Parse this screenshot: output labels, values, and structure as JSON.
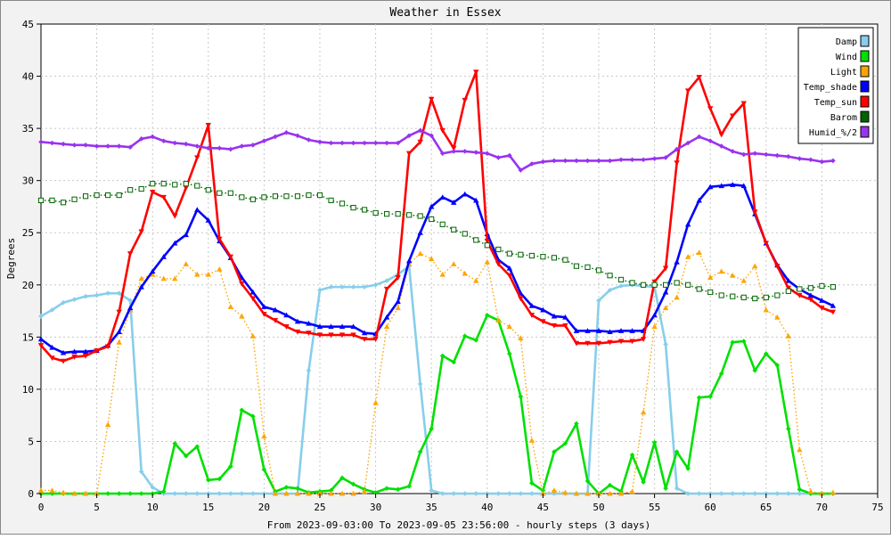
{
  "chart_data": {
    "type": "line",
    "title": "Weather in Essex",
    "xlabel": "From 2023-09-03:00 To 2023-09-05 23:56:00 - hourly steps (3 days)",
    "ylabel": "Degrees",
    "xlim": [
      0,
      75
    ],
    "ylim": [
      0,
      45
    ],
    "xticks": [
      0,
      5,
      10,
      15,
      20,
      25,
      30,
      35,
      40,
      45,
      50,
      55,
      60,
      65,
      70,
      75
    ],
    "yticks": [
      0,
      5,
      10,
      15,
      20,
      25,
      30,
      35,
      40,
      45
    ],
    "grid": true,
    "legend_position": "top-right",
    "x": [
      0,
      1,
      2,
      3,
      4,
      5,
      6,
      7,
      8,
      9,
      10,
      11,
      12,
      13,
      14,
      15,
      16,
      17,
      18,
      19,
      20,
      21,
      22,
      23,
      24,
      25,
      26,
      27,
      28,
      29,
      30,
      31,
      32,
      33,
      34,
      35,
      36,
      37,
      38,
      39,
      40,
      41,
      42,
      43,
      44,
      45,
      46,
      47,
      48,
      49,
      50,
      51,
      52,
      53,
      54,
      55,
      56,
      57,
      58,
      59,
      60,
      61,
      62,
      63,
      64,
      65,
      66,
      67,
      68,
      69,
      70,
      71
    ],
    "series": [
      {
        "name": "Damp",
        "color": "#87ceeb",
        "style": "solid",
        "marker": "diamond",
        "values": [
          17,
          17.6,
          18.3,
          18.6,
          18.9,
          19.0,
          19.2,
          19.2,
          18.5,
          2.1,
          0.6,
          0,
          0,
          0,
          0,
          0,
          0,
          0,
          0,
          0,
          0,
          0,
          0,
          0,
          11.8,
          19.5,
          19.8,
          19.8,
          19.8,
          19.8,
          20.0,
          20.4,
          21.0,
          21.8,
          10.5,
          0.3,
          0,
          0,
          0,
          0,
          0,
          0,
          0,
          0,
          0,
          0,
          0,
          0,
          0,
          0,
          18.5,
          19.5,
          19.9,
          20.0,
          19.9,
          19.8,
          14.3,
          0.5,
          0,
          0,
          0,
          0,
          0,
          0,
          0,
          0,
          0,
          0,
          0,
          0,
          0,
          0
        ]
      },
      {
        "name": "Wind",
        "color": "#00e000",
        "style": "solid",
        "marker": "diamond",
        "values": [
          0,
          0,
          0,
          0,
          0,
          0,
          0,
          0,
          0,
          0,
          0,
          0.2,
          4.8,
          3.6,
          4.5,
          1.3,
          1.4,
          2.6,
          8.0,
          7.4,
          2.3,
          0.2,
          0.6,
          0.5,
          0.1,
          0.2,
          0.3,
          1.5,
          0.9,
          0.4,
          0.1,
          0.5,
          0.4,
          0.7,
          4.0,
          6.2,
          13.2,
          12.6,
          15.1,
          14.7,
          17.1,
          16.6,
          13.4,
          9.3,
          1.0,
          0.3,
          4.0,
          4.8,
          6.7,
          1.2,
          0,
          0.8,
          0.2,
          3.7,
          1.1,
          4.9,
          0.5,
          4.0,
          2.4,
          9.2,
          9.3,
          11.5,
          14.5,
          14.6,
          11.8,
          13.4,
          12.3,
          6.2,
          0.4,
          0,
          0,
          0
        ]
      },
      {
        "name": "Light",
        "color": "#ffa500",
        "style": "dotted",
        "marker": "triangle",
        "values": [
          0.3,
          0.3,
          0.1,
          0,
          0,
          0,
          6.6,
          14.5,
          17.6,
          20.6,
          21.0,
          20.6,
          20.6,
          22.0,
          21.0,
          21.0,
          21.5,
          17.9,
          17.0,
          15.1,
          5.5,
          0,
          0,
          0,
          0,
          0,
          0,
          0,
          0,
          0.2,
          8.7,
          16.0,
          17.8,
          22.0,
          23.0,
          22.5,
          21.0,
          22.0,
          21.1,
          20.4,
          22.2,
          16.6,
          16.0,
          14.9,
          5.1,
          0,
          0.3,
          0.1,
          0,
          0,
          0,
          0,
          0,
          0.2,
          7.8,
          16.0,
          17.8,
          18.8,
          22.7,
          23.1,
          20.7,
          21.3,
          20.9,
          20.4,
          21.8,
          17.6,
          16.9,
          15.1,
          4.2,
          0.2,
          0,
          0.1
        ]
      },
      {
        "name": "Temp_shade",
        "color": "#0000ff",
        "style": "solid",
        "marker": "triangle",
        "values": [
          14.8,
          14.0,
          13.5,
          13.6,
          13.6,
          13.7,
          14.2,
          15.5,
          17.8,
          19.8,
          21.3,
          22.7,
          24.0,
          24.8,
          27.2,
          26.2,
          24.2,
          22.6,
          20.7,
          19.3,
          17.9,
          17.6,
          17.1,
          16.5,
          16.3,
          16.0,
          16.0,
          16.0,
          16.0,
          15.4,
          15.3,
          16.9,
          18.4,
          22.3,
          25.0,
          27.5,
          28.4,
          27.9,
          28.7,
          28.1,
          24.9,
          22.4,
          21.6,
          19.2,
          18.0,
          17.6,
          17.0,
          16.9,
          15.6,
          15.6,
          15.6,
          15.5,
          15.6,
          15.6,
          15.6,
          17.1,
          19.3,
          22.2,
          25.8,
          28.1,
          29.4,
          29.5,
          29.6,
          29.5,
          26.8,
          24.0,
          21.9,
          20.4,
          19.6,
          19.0,
          18.5,
          18.0
        ]
      },
      {
        "name": "Temp_sun",
        "color": "#ff0000",
        "style": "solid",
        "marker": "triangle-down",
        "values": [
          14.2,
          13.0,
          12.7,
          13.1,
          13.2,
          13.7,
          14.1,
          17.4,
          23.0,
          25.1,
          28.9,
          28.4,
          26.6,
          29.3,
          32.2,
          35.3,
          24.4,
          22.7,
          20.1,
          18.7,
          17.2,
          16.6,
          16.0,
          15.5,
          15.4,
          15.2,
          15.2,
          15.2,
          15.2,
          14.8,
          14.8,
          19.6,
          20.7,
          32.6,
          33.7,
          37.8,
          34.8,
          33.1,
          37.7,
          40.4,
          24.2,
          22.0,
          20.9,
          18.7,
          17.1,
          16.5,
          16.1,
          16.1,
          14.4,
          14.4,
          14.4,
          14.5,
          14.6,
          14.6,
          14.8,
          20.3,
          21.6,
          31.7,
          38.6,
          39.9,
          36.9,
          34.4,
          36.2,
          37.4,
          27.0,
          24.0,
          21.8,
          19.7,
          19.0,
          18.6,
          17.8,
          17.4
        ]
      },
      {
        "name": "Barom",
        "color": "#006400",
        "style": "dotted",
        "marker": "square",
        "values": [
          28.1,
          28.1,
          27.9,
          28.2,
          28.5,
          28.6,
          28.6,
          28.6,
          29.1,
          29.2,
          29.7,
          29.7,
          29.6,
          29.7,
          29.5,
          29.1,
          28.8,
          28.8,
          28.4,
          28.2,
          28.4,
          28.5,
          28.5,
          28.5,
          28.6,
          28.6,
          28.1,
          27.8,
          27.4,
          27.2,
          26.9,
          26.8,
          26.8,
          26.7,
          26.6,
          26.3,
          25.8,
          25.3,
          24.9,
          24.3,
          23.8,
          23.4,
          23.0,
          22.9,
          22.8,
          22.7,
          22.6,
          22.4,
          21.8,
          21.7,
          21.4,
          20.9,
          20.5,
          20.2,
          20.0,
          20.0,
          20.0,
          20.2,
          20.0,
          19.6,
          19.3,
          19.0,
          18.9,
          18.8,
          18.7,
          18.8,
          19.0,
          19.4,
          19.6,
          19.7,
          19.9,
          19.8
        ]
      },
      {
        "name": "Humid_%/2",
        "color": "#9933ee",
        "style": "solid",
        "marker": "diamond",
        "values": [
          33.7,
          33.6,
          33.5,
          33.4,
          33.4,
          33.3,
          33.3,
          33.3,
          33.2,
          34.0,
          34.2,
          33.8,
          33.6,
          33.5,
          33.3,
          33.1,
          33.1,
          33.0,
          33.3,
          33.4,
          33.8,
          34.2,
          34.6,
          34.3,
          33.9,
          33.7,
          33.6,
          33.6,
          33.6,
          33.6,
          33.6,
          33.6,
          33.6,
          34.3,
          34.8,
          34.3,
          32.6,
          32.8,
          32.8,
          32.7,
          32.6,
          32.2,
          32.4,
          31.0,
          31.6,
          31.8,
          31.9,
          31.9,
          31.9,
          31.9,
          31.9,
          31.9,
          32.0,
          32.0,
          32.0,
          32.1,
          32.2,
          33.0,
          33.6,
          34.2,
          33.8,
          33.3,
          32.8,
          32.5,
          32.6,
          32.5,
          32.4,
          32.3,
          32.1,
          32.0,
          31.8,
          31.9
        ]
      }
    ]
  }
}
